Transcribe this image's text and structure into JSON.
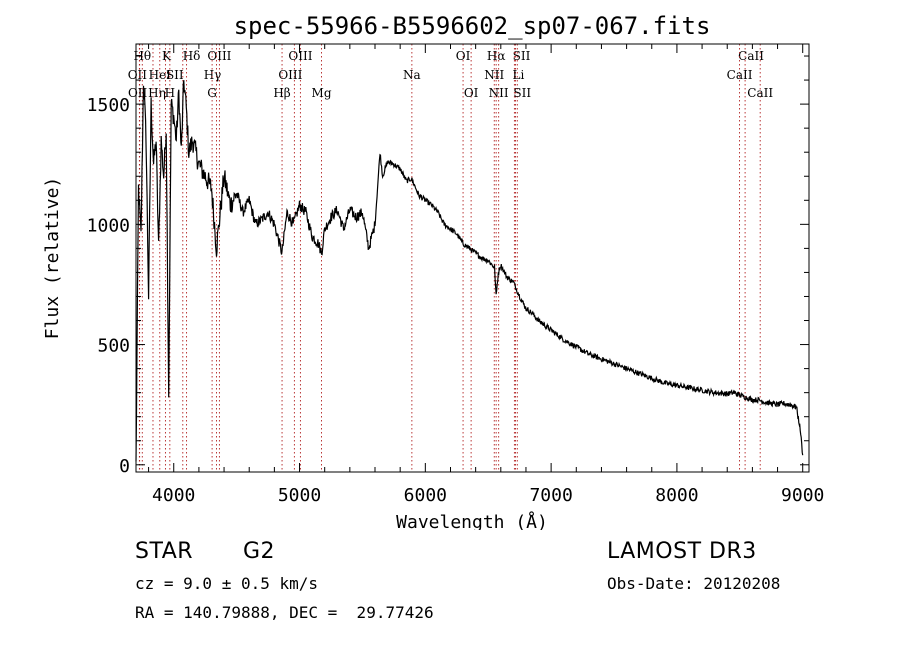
{
  "chart_data": {
    "type": "line",
    "title": "spec-55966-B5596602_sp07-067.fits",
    "xlabel": "Wavelength (Å)",
    "ylabel": "Flux (relative)",
    "xlim": [
      3700,
      9050
    ],
    "ylim": [
      -30,
      1750
    ],
    "xticks": [
      4000,
      5000,
      6000,
      7000,
      8000,
      9000
    ],
    "yticks": [
      0,
      500,
      1000,
      1500
    ],
    "series": [
      {
        "name": "flux",
        "x": [
          3700,
          3720,
          3740,
          3760,
          3780,
          3800,
          3820,
          3840,
          3860,
          3880,
          3900,
          3920,
          3940,
          3960,
          3980,
          4000,
          4020,
          4040,
          4060,
          4080,
          4100,
          4120,
          4150,
          4200,
          4250,
          4300,
          4340,
          4400,
          4450,
          4500,
          4550,
          4600,
          4650,
          4700,
          4750,
          4800,
          4861,
          4900,
          4950,
          5000,
          5050,
          5100,
          5150,
          5175,
          5200,
          5250,
          5300,
          5350,
          5400,
          5450,
          5500,
          5550,
          5600,
          5620,
          5640,
          5660,
          5700,
          5750,
          5800,
          5850,
          5890,
          5950,
          6000,
          6050,
          6100,
          6150,
          6200,
          6250,
          6300,
          6350,
          6400,
          6450,
          6500,
          6550,
          6563,
          6580,
          6600,
          6650,
          6700,
          6750,
          6800,
          6850,
          6900,
          6950,
          7000,
          7100,
          7200,
          7300,
          7400,
          7500,
          7600,
          7700,
          7800,
          7900,
          8000,
          8100,
          8200,
          8300,
          8400,
          8450,
          8500,
          8550,
          8600,
          8650,
          8700,
          8750,
          8800,
          8850,
          8900,
          8950,
          8980,
          9000
        ],
        "y": [
          0,
          1150,
          950,
          1600,
          1350,
          700,
          1500,
          1250,
          1350,
          900,
          1350,
          1200,
          1400,
          300,
          1500,
          1450,
          1350,
          1550,
          1300,
          1600,
          1480,
          1300,
          1350,
          1250,
          1200,
          1150,
          900,
          1200,
          1080,
          1130,
          1050,
          1100,
          1000,
          1020,
          1050,
          1000,
          880,
          1050,
          1000,
          1080,
          1050,
          950,
          920,
          880,
          980,
          1030,
          1060,
          980,
          1060,
          1030,
          1050,
          900,
          1000,
          1150,
          1300,
          1200,
          1260,
          1250,
          1230,
          1180,
          1190,
          1120,
          1100,
          1080,
          1050,
          1000,
          980,
          960,
          920,
          900,
          880,
          860,
          850,
          820,
          700,
          800,
          830,
          780,
          760,
          700,
          650,
          630,
          600,
          580,
          560,
          520,
          490,
          460,
          440,
          420,
          400,
          380,
          360,
          340,
          330,
          320,
          310,
          300,
          295,
          300,
          290,
          280,
          270,
          270,
          260,
          255,
          250,
          255,
          250,
          240,
          150,
          40
        ]
      }
    ],
    "lines": [
      {
        "label": "Hθ",
        "wl": 3750,
        "row": 1,
        "dx": 0
      },
      {
        "label": "OII",
        "wl": 3727,
        "row": 2,
        "dx": -2
      },
      {
        "label": "OII",
        "wl": 3729,
        "row": 3,
        "dx": -2
      },
      {
        "label": "Hη",
        "wl": 3835,
        "row": 3,
        "dx": 4
      },
      {
        "label": "HeI",
        "wl": 3889,
        "row": 2,
        "dx": 0
      },
      {
        "label": "K",
        "wl": 3934,
        "row": 1,
        "dx": 1
      },
      {
        "label": "H",
        "wl": 3969,
        "row": 3,
        "dx": 0
      },
      {
        "label": "SII",
        "wl": 4072,
        "row": 2,
        "dx": -8
      },
      {
        "label": "Hδ",
        "wl": 4102,
        "row": 1,
        "dx": 5
      },
      {
        "label": "OIII",
        "wl": 4363,
        "row": 1,
        "dx": 0
      },
      {
        "label": "Hγ",
        "wl": 4340,
        "row": 2,
        "dx": -4
      },
      {
        "label": "G",
        "wl": 4305,
        "row": 3,
        "dx": 0
      },
      {
        "label": "Hβ",
        "wl": 4861,
        "row": 3,
        "dx": 0
      },
      {
        "label": "OIII",
        "wl": 5007,
        "row": 1,
        "dx": 0
      },
      {
        "label": "OIII",
        "wl": 4959,
        "row": 2,
        "dx": -4
      },
      {
        "label": "Mg",
        "wl": 5175,
        "row": 3,
        "dx": 0
      },
      {
        "label": "Na",
        "wl": 5893,
        "row": 2,
        "dx": 0
      },
      {
        "label": "OI",
        "wl": 6300,
        "row": 1,
        "dx": 0
      },
      {
        "label": "OI",
        "wl": 6364,
        "row": 3,
        "dx": 0
      },
      {
        "label": "Hα",
        "wl": 6563,
        "row": 1,
        "dx": 0
      },
      {
        "label": "NII",
        "wl": 6548,
        "row": 2,
        "dx": 0
      },
      {
        "label": "NII",
        "wl": 6583,
        "row": 3,
        "dx": 0
      },
      {
        "label": "SII",
        "wl": 6717,
        "row": 1,
        "dx": 6
      },
      {
        "label": "Li",
        "wl": 6708,
        "row": 2,
        "dx": 4
      },
      {
        "label": "SII",
        "wl": 6731,
        "row": 3,
        "dx": 5
      },
      {
        "label": "CaII",
        "wl": 8542,
        "row": 1,
        "dx": 6
      },
      {
        "label": "CaII",
        "wl": 8498,
        "row": 2,
        "dx": 0
      },
      {
        "label": "CaII",
        "wl": 8662,
        "row": 3,
        "dx": 0
      }
    ]
  },
  "footer": {
    "object_class": "STAR",
    "subclass": "G2",
    "survey": "LAMOST DR3",
    "cz": "cz = 9.0 ± 0.5 km/s",
    "obs_date": "Obs-Date: 20120208",
    "coords": "RA = 140.79888, DEC =  29.77426"
  }
}
